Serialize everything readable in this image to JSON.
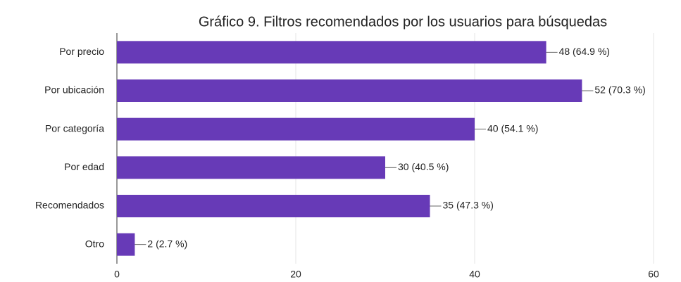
{
  "chart_data": {
    "type": "bar",
    "orientation": "horizontal",
    "title": "Gráfico 9. Filtros recomendados por los usuarios para búsquedas",
    "categories": [
      "Por precio",
      "Por ubicación",
      "Por categoría",
      "Por edad",
      "Recomendados",
      "Otro"
    ],
    "values": [
      48,
      52,
      40,
      30,
      35,
      2
    ],
    "value_labels": [
      "48 (64.9 %)",
      "52 (70.3 %)",
      "40 (54.1 %)",
      "30 (40.5 %)",
      "35 (47.3 %)",
      "2 (2.7 %)"
    ],
    "color": "#673ab7",
    "xlim": [
      0,
      60
    ],
    "xticks": [
      0,
      20,
      40,
      60
    ],
    "grid": true
  }
}
